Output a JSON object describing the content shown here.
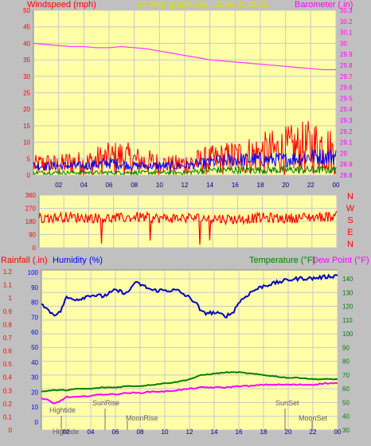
{
  "colors": {
    "background": "#c0c0c0",
    "plot_bg": "#ffffa8",
    "grid": "#c8c8c8",
    "wind": "#ff0000",
    "gust": "#0000ff",
    "avg": "#008000",
    "barometer": "#ff40ff",
    "direction": "#ff0000",
    "rain": "#ff0000",
    "humidity": "#0000c0",
    "temperature": "#008000",
    "dewpoint": "#ff00ff",
    "axis_red": "#ff0000",
    "axis_blue": "#0000ff",
    "axis_magenta": "#ff00ff",
    "title": "#e0e000",
    "event_text": "#606060"
  },
  "header": {
    "wind_label": "Windspeed (mph)",
    "title": "24 hour graph day : June 05 2019",
    "baro_label": "Barometer (.in)"
  },
  "bottom_header": {
    "rain_label": "Rainfall (.in)",
    "humidity_label": "Humidity (%)",
    "temp_label": "Temperature (°F)",
    "dew_label": "Dew Point (°F)"
  },
  "events": {
    "hightide1": "Hightide",
    "hightide2": "Hightide",
    "sunrise": "SunRise",
    "moonrise": "MoonRise",
    "sunset": "SunSet",
    "moonset": "MoonSet"
  },
  "chart_data": [
    {
      "type": "line",
      "title": "24 hour graph day : June 05 2019",
      "x_ticks": [
        "02",
        "04",
        "06",
        "08",
        "10",
        "12",
        "14",
        "16",
        "18",
        "20",
        "22",
        "00"
      ],
      "y_left": {
        "label": "Windspeed (mph)",
        "ticks": [
          0,
          5,
          10,
          15,
          20,
          25,
          30,
          35,
          40,
          45,
          50
        ],
        "range": [
          0,
          50
        ]
      },
      "y_right": {
        "label": "Barometer (.in)",
        "ticks": [
          "28.8",
          "28.9",
          "29",
          "29.1",
          "29.2",
          "29.3",
          "29.4",
          "29.5",
          "29.6",
          "29.7",
          "29.8",
          "29.9",
          "30",
          "30.1",
          "30.2",
          "30.3"
        ],
        "range": [
          28.8,
          30.3
        ]
      },
      "series": [
        {
          "name": "Barometer (.in)",
          "axis": "right",
          "x": [
            0,
            1,
            2,
            3,
            4,
            5,
            6,
            7,
            8,
            9,
            10,
            11,
            12,
            13,
            14,
            15,
            16,
            17,
            18,
            19,
            20,
            21,
            22,
            23,
            24
          ],
          "values": [
            30.0,
            29.99,
            29.98,
            29.97,
            29.97,
            29.96,
            29.96,
            29.97,
            29.96,
            29.95,
            29.93,
            29.91,
            29.89,
            29.87,
            29.85,
            29.84,
            29.83,
            29.82,
            29.81,
            29.8,
            29.79,
            29.78,
            29.77,
            29.76,
            29.76
          ]
        },
        {
          "role": "wind",
          "axis": "left",
          "x": [
            0,
            1,
            2,
            3,
            4,
            5,
            6,
            7,
            8,
            9,
            10,
            11,
            12,
            13,
            14,
            15,
            16,
            17,
            18,
            19,
            20,
            21,
            22,
            23,
            24
          ],
          "values": [
            6,
            7,
            6,
            8,
            7,
            9,
            10,
            11,
            9,
            8,
            7,
            6,
            7,
            8,
            9,
            10,
            11,
            12,
            13,
            14,
            15,
            16,
            17,
            18,
            12
          ]
        },
        {
          "role": "gust",
          "axis": "left",
          "x": [
            0,
            2,
            4,
            6,
            8,
            10,
            12,
            14,
            16,
            18,
            20,
            22,
            24
          ],
          "values": [
            3,
            3,
            3,
            4,
            3,
            3,
            3,
            4,
            5,
            5,
            5,
            6,
            6
          ]
        },
        {
          "role": "avg",
          "axis": "left",
          "x": [
            0,
            2,
            4,
            6,
            8,
            10,
            12,
            14,
            16,
            18,
            20,
            22,
            24
          ],
          "values": [
            1,
            1,
            1,
            1,
            1,
            1,
            1,
            2,
            2,
            2,
            2,
            2,
            2
          ]
        }
      ]
    },
    {
      "type": "line",
      "x_ticks": [
        "02",
        "04",
        "06",
        "08",
        "10",
        "12",
        "14",
        "16",
        "18",
        "20",
        "22",
        "00"
      ],
      "y_left": {
        "ticks": [
          0,
          90,
          180,
          270,
          360
        ],
        "range": [
          0,
          360
        ]
      },
      "y_right": {
        "ticks": [
          "N",
          "W",
          "S",
          "E",
          "N"
        ]
      },
      "series": [
        {
          "role": "direction",
          "x": [
            0,
            2,
            4,
            6,
            8,
            10,
            12,
            14,
            16,
            18,
            20,
            22,
            24
          ],
          "values": [
            200,
            210,
            205,
            200,
            210,
            200,
            205,
            200,
            195,
            205,
            200,
            210,
            215
          ]
        }
      ]
    },
    {
      "type": "line",
      "x_ticks": [
        "02",
        "04",
        "06",
        "08",
        "10",
        "12",
        "14",
        "16",
        "18",
        "20",
        "22",
        "00"
      ],
      "y_left_outer": {
        "label": "Rainfall (.in)",
        "ticks": [
          "0",
          "0.1",
          "0.2",
          "0.3",
          "0.4",
          "0.5",
          "0.6",
          "0.7",
          "0.8",
          "0.9",
          "1",
          "1.1",
          "1.2"
        ],
        "range": [
          0,
          1.2
        ]
      },
      "y_left_inner": {
        "label": "Humidity (%)",
        "ticks": [
          0,
          10,
          20,
          30,
          40,
          50,
          60,
          70,
          80,
          90,
          100
        ],
        "range": [
          0,
          100
        ]
      },
      "y_right": {
        "label": "Temperature (°F)",
        "ticks": [
          30,
          40,
          50,
          60,
          70,
          80,
          90,
          100,
          110,
          120,
          130,
          140
        ],
        "range": [
          30,
          140
        ]
      },
      "series": [
        {
          "name": "Humidity (%)",
          "axis": "humidity",
          "x": [
            0,
            0.5,
            1,
            1.5,
            2,
            3,
            4,
            5,
            6,
            7,
            7.5,
            8,
            9,
            10,
            11,
            12,
            12.5,
            13,
            14,
            15,
            15.5,
            16,
            17,
            18,
            19,
            20,
            21,
            22,
            23,
            24
          ],
          "values": [
            80,
            75,
            72,
            73,
            83,
            82,
            85,
            84,
            88,
            86,
            93,
            92,
            88,
            88,
            88,
            83,
            80,
            73,
            73,
            71,
            73,
            80,
            87,
            91,
            93,
            95,
            96,
            96,
            97,
            98
          ]
        },
        {
          "name": "Temperature (°F)",
          "axis": "temp",
          "x": [
            0,
            1,
            2,
            3,
            4,
            5,
            6,
            7,
            8,
            9,
            10,
            11,
            12,
            13,
            14,
            15,
            16,
            17,
            18,
            19,
            20,
            21,
            22,
            23,
            24
          ],
          "values": [
            58,
            59,
            59,
            60,
            60,
            61,
            61,
            62,
            62,
            63,
            64,
            65,
            67,
            70,
            71,
            72,
            72,
            71,
            70,
            69,
            68,
            68,
            67,
            67,
            67
          ]
        },
        {
          "name": "Dew Point (°F)",
          "axis": "temp",
          "x": [
            0,
            0.5,
            1,
            1.5,
            2,
            3,
            4,
            5,
            6,
            7,
            8,
            9,
            10,
            11,
            12,
            13,
            14,
            15,
            16,
            17,
            18,
            19,
            20,
            21,
            22,
            23,
            24
          ],
          "values": [
            53,
            52,
            49,
            51,
            54,
            54,
            55,
            56,
            56,
            57,
            57,
            58,
            58,
            59,
            60,
            61,
            61,
            61,
            62,
            62,
            63,
            63,
            63,
            63,
            63,
            64,
            64
          ]
        }
      ]
    }
  ]
}
